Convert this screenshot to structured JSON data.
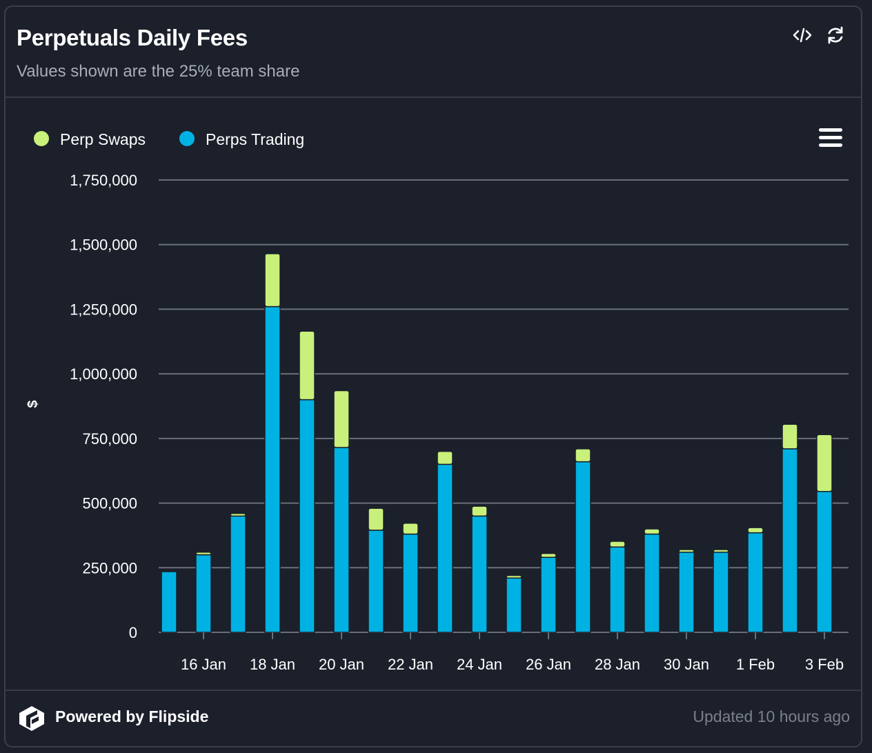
{
  "header": {
    "title": "Perpetuals Daily Fees",
    "subtitle": "Values shown are the 25% team share",
    "embed_icon": "code-icon",
    "refresh_icon": "refresh-icon"
  },
  "footer": {
    "powered_by": "Powered by Flipside",
    "updated": "Updated 10 hours ago"
  },
  "colors": {
    "perp_swaps": "#c9f07a",
    "perps_trading": "#00b2e3",
    "background": "#1b202b"
  },
  "chart_data": {
    "type": "bar",
    "stacked": true,
    "ylabel": "$",
    "ylim": [
      0,
      1750000
    ],
    "yticks": [
      0,
      250000,
      500000,
      750000,
      1000000,
      1250000,
      1500000,
      1750000
    ],
    "ytick_labels": [
      "0",
      "250,000",
      "500,000",
      "750,000",
      "1,000,000",
      "1,250,000",
      "1,500,000",
      "1,750,000"
    ],
    "xtick_labels": [
      "16 Jan",
      "18 Jan",
      "20 Jan",
      "22 Jan",
      "24 Jan",
      "26 Jan",
      "28 Jan",
      "30 Jan",
      "1 Feb",
      "3 Feb"
    ],
    "categories": [
      "15 Jan",
      "16 Jan",
      "17 Jan",
      "18 Jan",
      "19 Jan",
      "20 Jan",
      "21 Jan",
      "22 Jan",
      "23 Jan",
      "24 Jan",
      "25 Jan",
      "26 Jan",
      "27 Jan",
      "28 Jan",
      "29 Jan",
      "30 Jan",
      "31 Jan",
      "1 Feb",
      "2 Feb",
      "3 Feb"
    ],
    "legend": [
      "Perp Swaps",
      "Perps Trading"
    ],
    "series": [
      {
        "name": "Perps Trading",
        "values": [
          235000,
          300000,
          450000,
          1260000,
          900000,
          715000,
          395000,
          380000,
          650000,
          450000,
          210000,
          290000,
          660000,
          330000,
          380000,
          310000,
          310000,
          385000,
          710000,
          545000
        ]
      },
      {
        "name": "Perp Swaps",
        "values": [
          3000,
          10000,
          10000,
          205000,
          265000,
          220000,
          85000,
          42000,
          50000,
          38000,
          10000,
          15000,
          50000,
          22000,
          20000,
          10000,
          10000,
          20000,
          95000,
          220000
        ]
      }
    ]
  }
}
